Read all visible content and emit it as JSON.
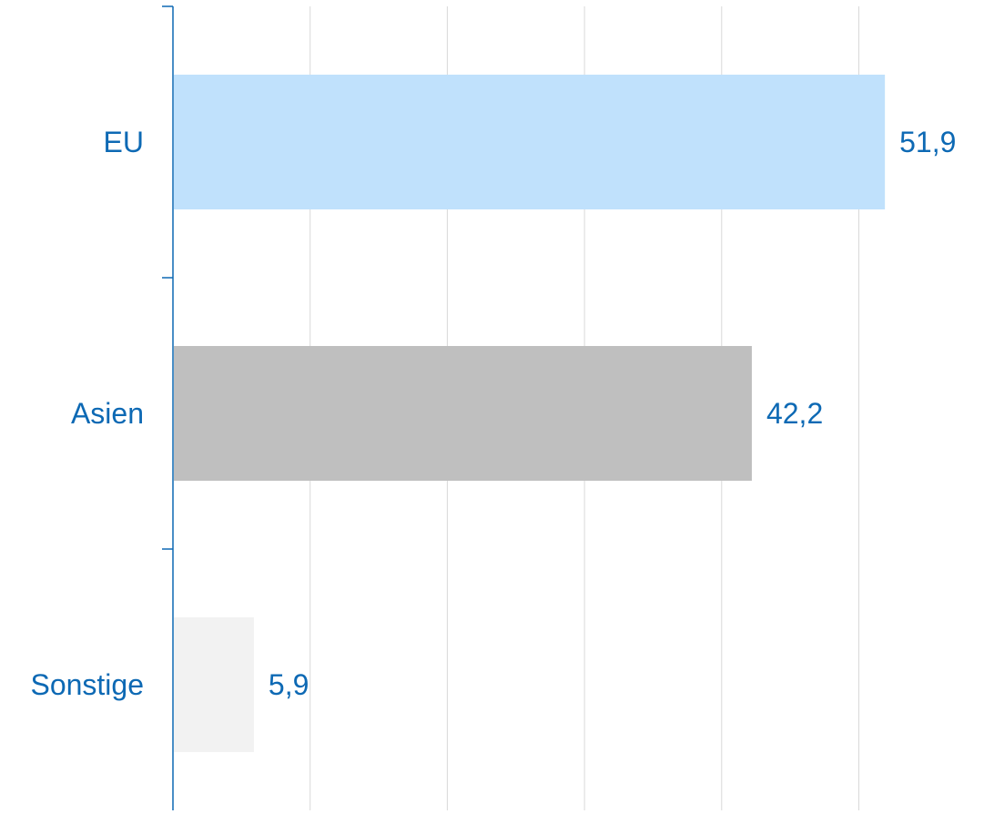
{
  "chart_data": {
    "type": "bar",
    "orientation": "horizontal",
    "categories": [
      "EU",
      "Asien",
      "Sonstige"
    ],
    "values": [
      51.9,
      42.2,
      5.9
    ],
    "value_labels": [
      "51,9",
      "42,2",
      "5,9"
    ],
    "bar_colors": [
      "#c0e1fc",
      "#bfbfbf",
      "#f2f2f2"
    ],
    "xlim": [
      0,
      60
    ],
    "x_gridlines": [
      10,
      20,
      30,
      40,
      50
    ],
    "grid": "vertical",
    "legend": "none",
    "title": "",
    "xlabel": "",
    "ylabel": ""
  },
  "colors": {
    "text": "#0d69b4",
    "axis": "#0d69b4",
    "gridline": "#d9d9d9"
  }
}
